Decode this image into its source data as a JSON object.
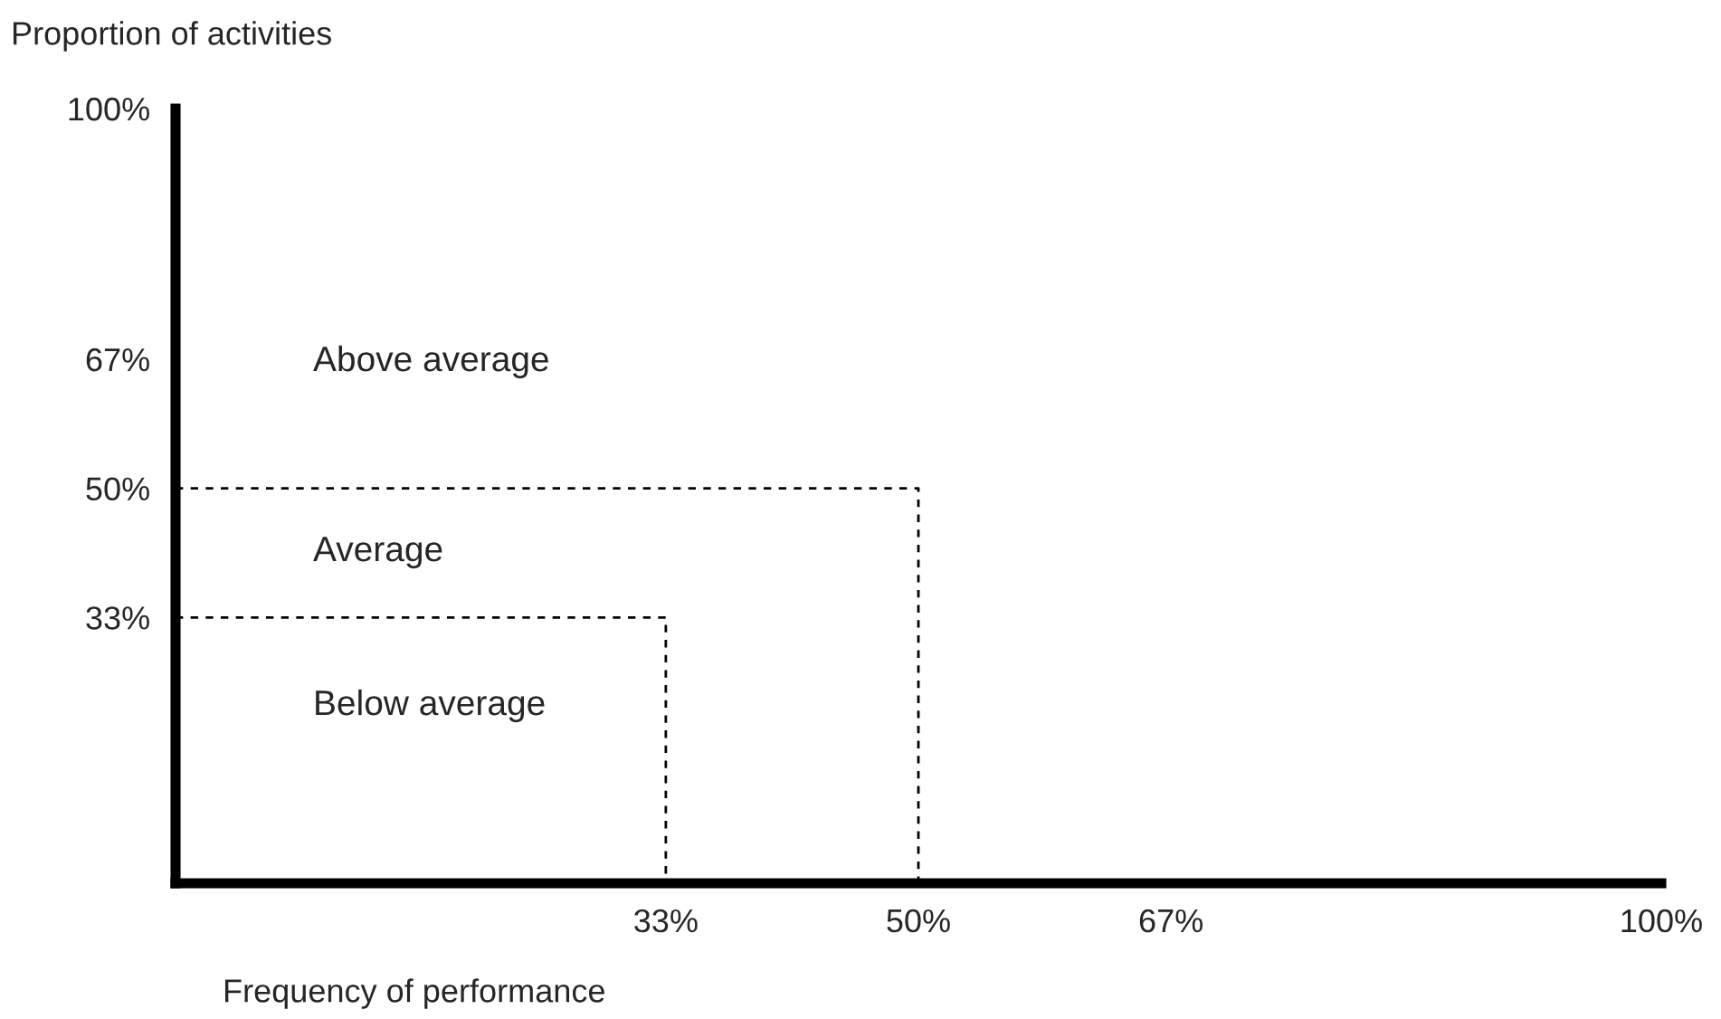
{
  "chart_data": {
    "type": "line",
    "ylabel": "Proportion of activities",
    "xlabel": "Frequency of performance",
    "xlim": [
      0,
      100
    ],
    "ylim": [
      -2,
      100
    ],
    "xticks": [
      {
        "value": 33,
        "label": "33%"
      },
      {
        "value": 50,
        "label": "50%"
      },
      {
        "value": 67,
        "label": "67%"
      },
      {
        "value": 100,
        "label": "100%"
      }
    ],
    "yticks": [
      {
        "value": 33,
        "label": "33%"
      },
      {
        "value": 50,
        "label": "50%"
      },
      {
        "value": 67,
        "label": "67%"
      },
      {
        "value": 100,
        "label": "100%"
      }
    ],
    "series": [
      {
        "color": "#000000",
        "x": [
          0,
          33,
          33
        ],
        "values": [
          33,
          33,
          -2
        ]
      },
      {
        "color": "#000000",
        "x": [
          0,
          50,
          50
        ],
        "values": [
          50,
          50,
          -2
        ]
      }
    ],
    "line_style": "dashed",
    "marker": "none",
    "grid": false,
    "legend": false,
    "annotations": [
      "Above average",
      "Average",
      "Below average"
    ]
  }
}
